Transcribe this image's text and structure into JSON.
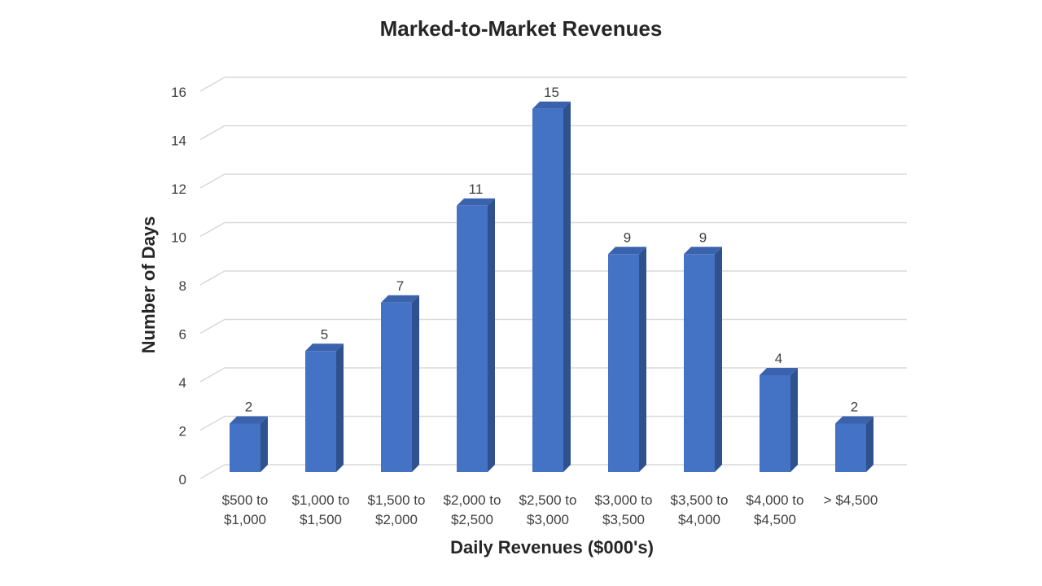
{
  "chart_data": {
    "type": "bar",
    "title": "Marked-to-Market Revenues",
    "xlabel": "Daily Revenues ($000's)",
    "ylabel": "Number of Days",
    "categories": [
      [
        "$500 to",
        "$1,000"
      ],
      [
        "$1,000 to",
        "$1,500"
      ],
      [
        "$1,500 to",
        "$2,000"
      ],
      [
        "$2,000 to",
        "$2,500"
      ],
      [
        "$2,500 to",
        "$3,000"
      ],
      [
        "$3,000 to",
        "$3,500"
      ],
      [
        "$3,500 to",
        "$4,000"
      ],
      [
        "$4,000 to",
        "$4,500"
      ],
      [
        "> $4,500"
      ]
    ],
    "values": [
      2,
      5,
      7,
      11,
      15,
      9,
      9,
      4,
      2
    ],
    "data_labels": [
      "2",
      "5",
      "7",
      "11",
      "15",
      "9",
      "9",
      "4",
      "2"
    ],
    "ylim": [
      0,
      16
    ],
    "yticks": [
      "0",
      "2",
      "4",
      "6",
      "8",
      "10",
      "12",
      "14",
      "16"
    ],
    "grid": true,
    "legend": "none",
    "style": "3d-column",
    "colors": {
      "bar_front": "#4472C4",
      "bar_side": "#2F528F",
      "bar_top": "#3A62AD",
      "grid": "#D9D9D9"
    }
  }
}
